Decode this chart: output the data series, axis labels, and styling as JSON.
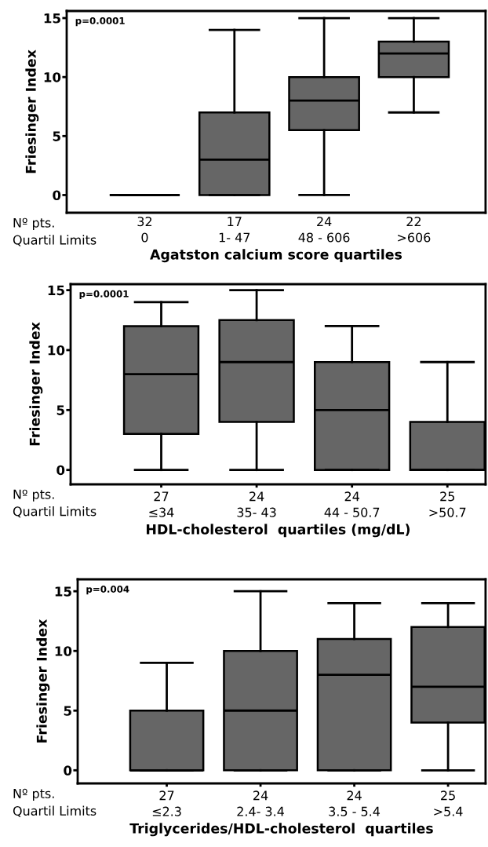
{
  "chart_data": [
    {
      "type": "box",
      "xlabel": "Agatston calcium score quartiles",
      "ylabel": "Friesinger Index",
      "categories": [
        "32\n0",
        "17\n1- 47",
        "24\n48 - 606",
        "22\n>606"
      ],
      "colors": [
        "#000000",
        "#666666",
        "#666666",
        "#666666"
      ],
      "ylim": [
        -1.5,
        15.6
      ],
      "yticks": [
        0,
        5,
        10,
        15
      ],
      "grid": false,
      "annotations": [
        "p=0.0001",
        "Nº pts.",
        "Quartil Limits"
      ],
      "boxes": [
        {
          "low": 0,
          "q1": 0,
          "median": 0,
          "q3": 0,
          "high": 0
        },
        {
          "low": 0,
          "q1": 0,
          "median": 3,
          "q3": 7,
          "high": 14
        },
        {
          "low": 0,
          "q1": 5.5,
          "median": 8,
          "q3": 10,
          "high": 15
        },
        {
          "low": 7,
          "q1": 10,
          "median": 12,
          "q3": 13,
          "high": 15
        }
      ]
    },
    {
      "type": "box",
      "xlabel": "HDL-cholesterol  quartiles (mg/dL)",
      "ylabel": "Friesinger Index",
      "categories": [
        "27\n≤34",
        "24\n35- 43",
        "24\n44 - 50.7",
        "25\n>50.7"
      ],
      "color": "#666666",
      "ylim": [
        -1.2,
        15.5
      ],
      "yticks": [
        0,
        5,
        10,
        15
      ],
      "grid": false,
      "annotations": [
        "p=0.0001",
        "Nº pts.",
        "Quartil Limits"
      ],
      "boxes": [
        {
          "low": 0,
          "q1": 3,
          "median": 8,
          "q3": 12,
          "high": 14
        },
        {
          "low": 0,
          "q1": 4,
          "median": 9,
          "q3": 12.5,
          "high": 15
        },
        {
          "low": 0,
          "q1": 0,
          "median": 5,
          "q3": 9,
          "high": 12
        },
        {
          "low": 0,
          "q1": 0,
          "median": 0,
          "q3": 4,
          "high": 9
        }
      ]
    },
    {
      "type": "box",
      "xlabel": "Triglycerides/HDL-cholesterol  quartiles",
      "ylabel": "Friesinger Index",
      "categories": [
        "27\n≤2.3",
        "24\n2.4- 3.4",
        "24\n3.5 - 5.4",
        "25\n>5.4"
      ],
      "color": "#666666",
      "ylim": [
        -1.1,
        16
      ],
      "yticks": [
        0,
        5,
        10,
        15
      ],
      "grid": false,
      "annotations": [
        "p=0.004",
        "Nº pts.",
        "Quartil Limits"
      ],
      "boxes": [
        {
          "low": 0,
          "q1": 0,
          "median": 0,
          "q3": 5,
          "high": 9
        },
        {
          "low": 0,
          "q1": 0,
          "median": 5,
          "q3": 10,
          "high": 15
        },
        {
          "low": 0,
          "q1": 0,
          "median": 8,
          "q3": 11,
          "high": 14
        },
        {
          "low": 0,
          "q1": 4,
          "median": 7,
          "q3": 12,
          "high": 14
        }
      ]
    }
  ]
}
